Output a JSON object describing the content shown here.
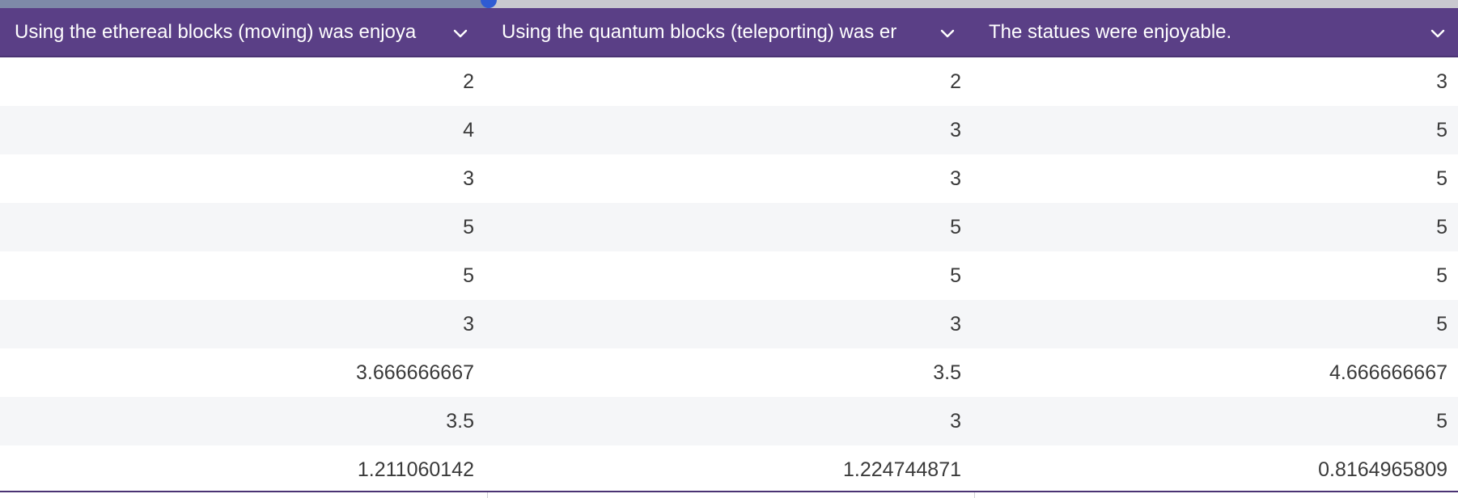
{
  "scrollbar": {
    "position_fraction": 0.335
  },
  "columns": [
    {
      "label": "Using the ethereal blocks (moving) was enjoya",
      "icon": "chevron-down-icon"
    },
    {
      "label": "Using the quantum blocks (teleporting) was er",
      "icon": "chevron-down-icon"
    },
    {
      "label": "The statues were enjoyable.",
      "icon": "chevron-down-icon"
    }
  ],
  "rows": [
    [
      "2",
      "2",
      "3"
    ],
    [
      "4",
      "3",
      "5"
    ],
    [
      "3",
      "3",
      "5"
    ],
    [
      "5",
      "5",
      "5"
    ],
    [
      "5",
      "5",
      "5"
    ],
    [
      "3",
      "3",
      "5"
    ],
    [
      "3.666666667",
      "3.5",
      "4.666666667"
    ],
    [
      "3.5",
      "3",
      "5"
    ],
    [
      "1.211060142",
      "1.224744871",
      "0.8164965809"
    ]
  ],
  "colors": {
    "header_bg": "#5a3f86",
    "header_text": "#ffffff",
    "row_alt_bg": "#f5f6f8",
    "scroll_thumb": "#2f5bd3"
  }
}
